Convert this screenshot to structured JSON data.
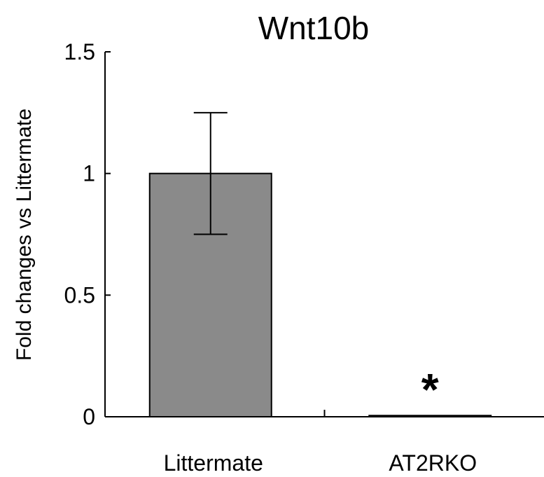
{
  "chart_data": {
    "type": "bar",
    "title": "Wnt10b",
    "xlabel": "",
    "ylabel": "Fold changes vs Littermate",
    "categories": [
      "Littermate",
      "AT2RKO"
    ],
    "values": [
      1.0,
      0.005
    ],
    "errors": [
      0.25,
      0.003
    ],
    "significance": [
      "",
      "*"
    ],
    "ylim": [
      0,
      1.5
    ],
    "yticks": [
      0,
      0.5,
      1,
      1.5
    ],
    "ytick_labels": [
      "0",
      "0.5",
      "1",
      "1.5"
    ],
    "grid": false,
    "colors": {
      "bar_fill": "#8a8a8a",
      "bar_stroke": "#000000",
      "axis": "#000000"
    }
  }
}
